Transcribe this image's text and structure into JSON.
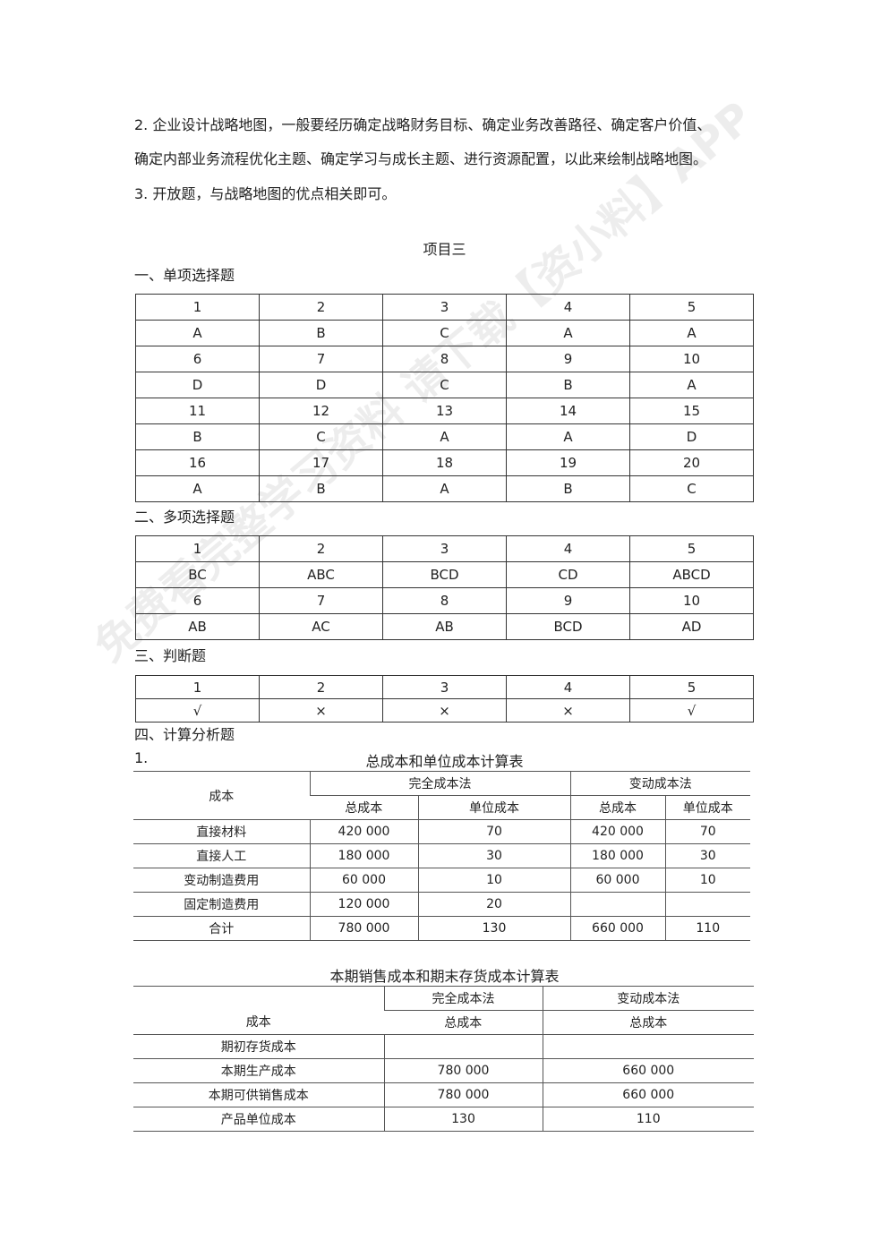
{
  "paragraphs": [
    "2. 企业设计战略地图，一般要经历确定战略财务目标、确定业务改善路径、确定客户价值、",
    "确定内部业务流程优化主题、确定学习与成长主题、进行资源配置，以此来绘制战略地图。",
    "3. 开放题，与战略地图的优点相关即可。"
  ],
  "project_title": "项目三",
  "sections": {
    "single": "一、单项选择题",
    "multi": "二、多项选择题",
    "judge": "三、判断题",
    "calc": "四、计算分析题"
  },
  "single_table": [
    [
      "1",
      "2",
      "3",
      "4",
      "5"
    ],
    [
      "A",
      "B",
      "C",
      "A",
      "A"
    ],
    [
      "6",
      "7",
      "8",
      "9",
      "10"
    ],
    [
      "D",
      "D",
      "C",
      "B",
      "A"
    ],
    [
      "11",
      "12",
      "13",
      "14",
      "15"
    ],
    [
      "B",
      "C",
      "A",
      "A",
      "D"
    ],
    [
      "16",
      "17",
      "18",
      "19",
      "20"
    ],
    [
      "A",
      "B",
      "A",
      "B",
      "C"
    ]
  ],
  "multi_table": [
    [
      "1",
      "2",
      "3",
      "4",
      "5"
    ],
    [
      "BC",
      "ABC",
      "BCD",
      "CD",
      "ABCD"
    ],
    [
      "6",
      "7",
      "8",
      "9",
      "10"
    ],
    [
      "AB",
      "AC",
      "AB",
      "BCD",
      "AD"
    ]
  ],
  "judge_table": [
    [
      "1",
      "2",
      "3",
      "4",
      "5"
    ],
    [
      "√",
      "×",
      "×",
      "×",
      "√"
    ]
  ],
  "calc1": {
    "number": "1.",
    "title": "总成本和单位成本计算表",
    "h_cost": "成本",
    "h_full": "完全成本法",
    "h_var": "变动成本法",
    "h_total": "总成本",
    "h_unit": "单位成本",
    "rows": [
      [
        "直接材料",
        "420 000",
        "70",
        "420 000",
        "70"
      ],
      [
        "直接人工",
        "180 000",
        "30",
        "180 000",
        "30"
      ],
      [
        "变动制造费用",
        "60 000",
        "10",
        "60 000",
        "10"
      ],
      [
        "固定制造费用",
        "120 000",
        "20",
        "",
        ""
      ],
      [
        "合计",
        "780 000",
        "130",
        "660 000",
        "110"
      ]
    ]
  },
  "calc2": {
    "title": "本期销售成本和期末存货成本计算表",
    "h_cost": "成本",
    "h_full": "完全成本法",
    "h_var": "变动成本法",
    "h_total": "总成本",
    "rows": [
      [
        "期初存货成本",
        "",
        ""
      ],
      [
        "本期生产成本",
        "780 000",
        "660 000"
      ],
      [
        "本期可供销售成本",
        "780 000",
        "660 000"
      ],
      [
        "产品单位成本",
        "130",
        "110"
      ]
    ]
  },
  "watermark": "免费看完整学习资料 请下载【资小料】APP"
}
